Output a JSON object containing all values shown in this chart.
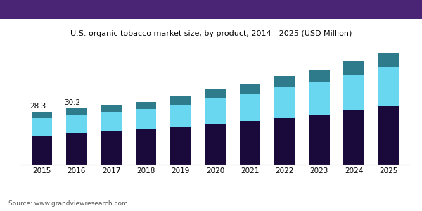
{
  "title": "U.S. organic tobacco market size, by product, 2014 - 2025 (USD Million)",
  "years": [
    2015,
    2016,
    2017,
    2018,
    2019,
    2020,
    2021,
    2022,
    2023,
    2024,
    2025
  ],
  "flue_cured": [
    15.5,
    17.0,
    18.2,
    19.3,
    20.5,
    22.0,
    23.5,
    25.0,
    26.8,
    29.0,
    31.5
  ],
  "sun_cured": [
    9.5,
    9.5,
    10.0,
    10.5,
    11.5,
    13.5,
    14.5,
    16.5,
    17.5,
    19.5,
    21.0
  ],
  "fired_cured": [
    3.3,
    3.7,
    3.8,
    4.0,
    4.5,
    5.0,
    5.5,
    6.0,
    6.5,
    7.0,
    7.5
  ],
  "annotations": {
    "2015": "28.3",
    "2016": "30.2"
  },
  "colors": {
    "flue_cured": "#1a0a3c",
    "sun_cured": "#6ad7f0",
    "fired_cured": "#2e7b8c"
  },
  "source": "Source: www.grandviewresearch.com",
  "header_color": "#4a2475",
  "ylim": [
    0,
    68
  ],
  "bar_width": 0.6
}
